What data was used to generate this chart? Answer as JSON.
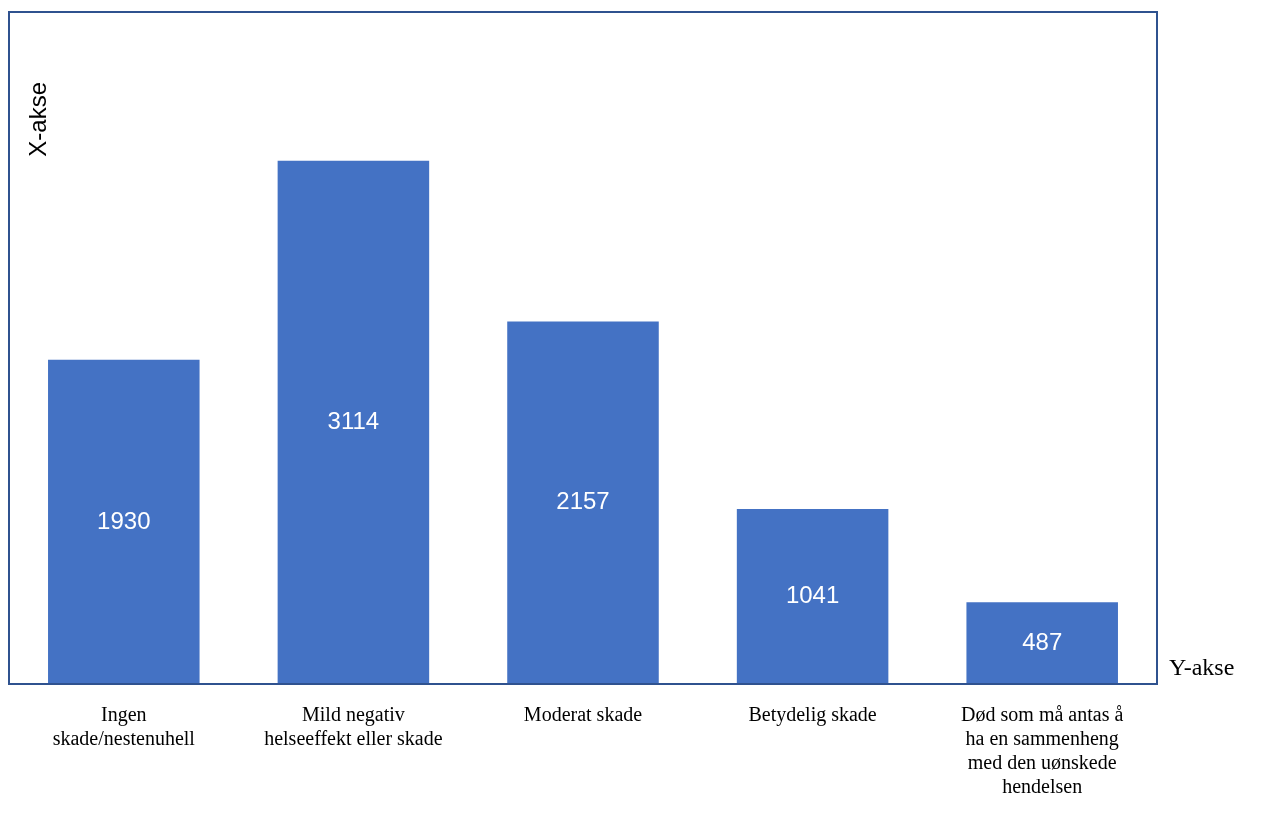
{
  "chart_data": {
    "type": "bar",
    "xlabel": "Y-akse",
    "ylabel": "X-akse",
    "categories": [
      "Ingen skade/nestenuhell",
      "Mild negativ helseeffekt eller skade",
      "Moderat skade",
      "Betydelig skade",
      "Død som må antas å ha en sammenheng med den uønskede hendelsen"
    ],
    "values": [
      1930,
      3114,
      2157,
      1041,
      487
    ],
    "color": "#4472c4",
    "data_labels": true,
    "grid": false,
    "legend": false
  }
}
